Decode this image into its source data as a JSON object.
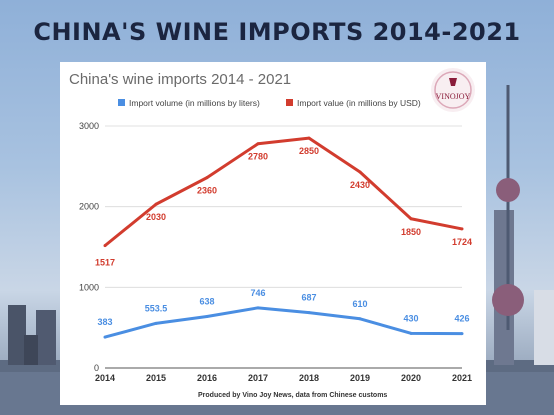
{
  "headline": "CHINA'S WINE IMPORTS 2014-2021",
  "logo": {
    "text": "VINOJOY",
    "color": "#8a1d3a"
  },
  "credit": "Produced by Vino Joy News, data from Chinese customs",
  "colors": {
    "red": "#d23c2e",
    "blue": "#4a8ee2"
  },
  "chart_data": {
    "type": "line",
    "title": "China's wine imports 2014 - 2021",
    "xlabel": "",
    "ylabel": "",
    "categories": [
      "2014",
      "2015",
      "2016",
      "2017",
      "2018",
      "2019",
      "2020",
      "2021"
    ],
    "yticks": [
      "0",
      "1000",
      "2000",
      "3000"
    ],
    "ylim": [
      0,
      3000
    ],
    "legend_position": "top",
    "series": [
      {
        "name": "Import volume (in millions by liters)",
        "color": "#4a8ee2",
        "values": [
          383,
          553.5,
          638,
          746,
          687,
          610,
          430,
          426
        ],
        "labels": [
          "383",
          "553.5",
          "638",
          "746",
          "687",
          "610",
          "430",
          "426"
        ]
      },
      {
        "name": "Import value (in millions by USD)",
        "color": "#d23c2e",
        "values": [
          1517,
          2030,
          2360,
          2780,
          2850,
          2430,
          1850,
          1724
        ],
        "labels": [
          "1517",
          "2030",
          "2360",
          "2780",
          "2850",
          "2430",
          "1850",
          "1724"
        ]
      }
    ]
  }
}
